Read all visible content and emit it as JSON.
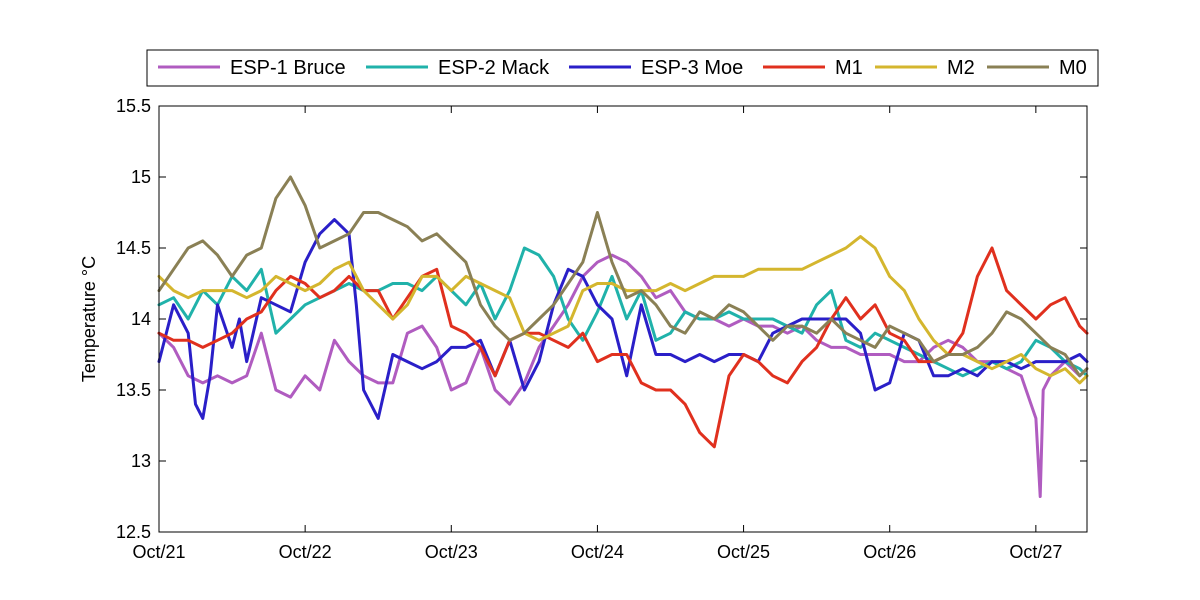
{
  "chart_data": {
    "type": "line",
    "title": "",
    "xlabel": "",
    "ylabel": "Temperature °C",
    "xlim": [
      0,
      6.35
    ],
    "ylim": [
      12.5,
      15.5
    ],
    "x_ticks": [
      0,
      1,
      2,
      3,
      4,
      5,
      6
    ],
    "x_tick_labels": [
      "Oct/21",
      "Oct/22",
      "Oct/23",
      "Oct/24",
      "Oct/25",
      "Oct/26",
      "Oct/27"
    ],
    "y_ticks": [
      12.5,
      13,
      13.5,
      14,
      14.5,
      15,
      15.5
    ],
    "y_tick_labels": [
      "12.5",
      "13",
      "13.5",
      "14",
      "14.5",
      "15",
      "15.5"
    ],
    "legend_position": "top",
    "series": [
      {
        "name": "ESP-1 Bruce",
        "color": "#B05CC0",
        "x": [
          0,
          0.1,
          0.2,
          0.3,
          0.4,
          0.5,
          0.6,
          0.7,
          0.8,
          0.9,
          1.0,
          1.1,
          1.2,
          1.3,
          1.4,
          1.5,
          1.6,
          1.7,
          1.8,
          1.9,
          2.0,
          2.1,
          2.2,
          2.3,
          2.4,
          2.5,
          2.6,
          2.7,
          2.8,
          2.9,
          3.0,
          3.1,
          3.2,
          3.3,
          3.4,
          3.5,
          3.6,
          3.7,
          3.8,
          3.9,
          4.0,
          4.1,
          4.2,
          4.3,
          4.4,
          4.5,
          4.6,
          4.7,
          4.8,
          4.9,
          5.0,
          5.1,
          5.2,
          5.3,
          5.4,
          5.5,
          5.6,
          5.7,
          5.8,
          5.9,
          6.0,
          6.03,
          6.05,
          6.1,
          6.2,
          6.3,
          6.35
        ],
        "y": [
          13.9,
          13.8,
          13.6,
          13.55,
          13.6,
          13.55,
          13.6,
          13.9,
          13.5,
          13.45,
          13.6,
          13.5,
          13.85,
          13.7,
          13.6,
          13.55,
          13.55,
          13.9,
          13.95,
          13.8,
          13.5,
          13.55,
          13.8,
          13.5,
          13.4,
          13.55,
          13.8,
          13.95,
          14.1,
          14.3,
          14.4,
          14.45,
          14.4,
          14.3,
          14.15,
          14.2,
          14.05,
          14.0,
          14.0,
          13.95,
          14.0,
          13.95,
          13.95,
          13.9,
          13.95,
          13.85,
          13.8,
          13.8,
          13.75,
          13.75,
          13.75,
          13.7,
          13.7,
          13.8,
          13.85,
          13.8,
          13.7,
          13.7,
          13.65,
          13.6,
          13.3,
          12.75,
          13.5,
          13.6,
          13.7,
          13.6,
          13.65
        ]
      },
      {
        "name": "ESP-2 Mack",
        "color": "#20B2AA",
        "x": [
          0,
          0.1,
          0.2,
          0.3,
          0.4,
          0.5,
          0.6,
          0.7,
          0.8,
          0.9,
          1.0,
          1.1,
          1.2,
          1.3,
          1.4,
          1.5,
          1.6,
          1.7,
          1.8,
          1.9,
          2.0,
          2.1,
          2.2,
          2.3,
          2.4,
          2.5,
          2.6,
          2.7,
          2.8,
          2.9,
          3.0,
          3.1,
          3.2,
          3.3,
          3.4,
          3.5,
          3.6,
          3.7,
          3.8,
          3.9,
          4.0,
          4.1,
          4.2,
          4.3,
          4.4,
          4.5,
          4.6,
          4.7,
          4.8,
          4.9,
          5.0,
          5.1,
          5.2,
          5.3,
          5.4,
          5.5,
          5.6,
          5.7,
          5.8,
          5.9,
          6.0,
          6.1,
          6.2,
          6.3,
          6.35
        ],
        "y": [
          14.1,
          14.15,
          14.0,
          14.2,
          14.1,
          14.3,
          14.2,
          14.35,
          13.9,
          14.0,
          14.1,
          14.15,
          14.2,
          14.25,
          14.2,
          14.2,
          14.25,
          14.25,
          14.2,
          14.3,
          14.2,
          14.1,
          14.25,
          14.0,
          14.2,
          14.5,
          14.45,
          14.3,
          14.0,
          13.85,
          14.05,
          14.3,
          14.0,
          14.2,
          13.85,
          13.9,
          14.05,
          14.0,
          14.0,
          14.05,
          14.0,
          14.0,
          14.0,
          13.95,
          13.9,
          14.1,
          14.2,
          13.85,
          13.8,
          13.9,
          13.85,
          13.8,
          13.75,
          13.7,
          13.65,
          13.6,
          13.65,
          13.7,
          13.65,
          13.7,
          13.85,
          13.8,
          13.7,
          13.65,
          13.6
        ]
      },
      {
        "name": "ESP-3 Moe",
        "color": "#2A1FC8",
        "x": [
          0,
          0.1,
          0.2,
          0.25,
          0.3,
          0.35,
          0.4,
          0.5,
          0.55,
          0.6,
          0.7,
          0.8,
          0.9,
          1.0,
          1.1,
          1.2,
          1.3,
          1.35,
          1.4,
          1.5,
          1.6,
          1.7,
          1.8,
          1.9,
          2.0,
          2.1,
          2.2,
          2.3,
          2.4,
          2.5,
          2.6,
          2.7,
          2.8,
          2.9,
          3.0,
          3.1,
          3.2,
          3.3,
          3.4,
          3.5,
          3.6,
          3.7,
          3.8,
          3.9,
          4.0,
          4.1,
          4.2,
          4.3,
          4.4,
          4.5,
          4.6,
          4.7,
          4.8,
          4.9,
          5.0,
          5.1,
          5.2,
          5.3,
          5.4,
          5.5,
          5.6,
          5.7,
          5.8,
          5.9,
          6.0,
          6.1,
          6.2,
          6.3,
          6.35
        ],
        "y": [
          13.7,
          14.1,
          13.9,
          13.4,
          13.3,
          13.6,
          14.1,
          13.8,
          14.0,
          13.7,
          14.15,
          14.1,
          14.05,
          14.4,
          14.6,
          14.7,
          14.6,
          14.1,
          13.5,
          13.3,
          13.75,
          13.7,
          13.65,
          13.7,
          13.8,
          13.8,
          13.85,
          13.6,
          13.85,
          13.5,
          13.7,
          14.1,
          14.35,
          14.3,
          14.1,
          14.0,
          13.6,
          14.1,
          13.75,
          13.75,
          13.7,
          13.75,
          13.7,
          13.75,
          13.75,
          13.7,
          13.9,
          13.95,
          14.0,
          14.0,
          14.0,
          14.0,
          13.9,
          13.5,
          13.55,
          13.9,
          13.85,
          13.6,
          13.6,
          13.65,
          13.6,
          13.7,
          13.7,
          13.65,
          13.7,
          13.7,
          13.7,
          13.75,
          13.7
        ]
      },
      {
        "name": "M1",
        "color": "#E0301E",
        "x": [
          0,
          0.1,
          0.2,
          0.3,
          0.4,
          0.5,
          0.6,
          0.7,
          0.8,
          0.9,
          1.0,
          1.1,
          1.2,
          1.3,
          1.4,
          1.5,
          1.6,
          1.7,
          1.8,
          1.9,
          2.0,
          2.1,
          2.2,
          2.3,
          2.4,
          2.5,
          2.6,
          2.7,
          2.8,
          2.9,
          3.0,
          3.1,
          3.2,
          3.3,
          3.4,
          3.5,
          3.6,
          3.7,
          3.8,
          3.9,
          4.0,
          4.1,
          4.2,
          4.3,
          4.4,
          4.5,
          4.6,
          4.7,
          4.8,
          4.9,
          5.0,
          5.1,
          5.2,
          5.3,
          5.4,
          5.5,
          5.6,
          5.7,
          5.8,
          5.9,
          6.0,
          6.05,
          6.1,
          6.2,
          6.3,
          6.35
        ],
        "y": [
          13.9,
          13.85,
          13.85,
          13.8,
          13.85,
          13.9,
          14.0,
          14.05,
          14.2,
          14.3,
          14.25,
          14.15,
          14.2,
          14.3,
          14.2,
          14.2,
          14.0,
          14.15,
          14.3,
          14.35,
          13.95,
          13.9,
          13.8,
          13.6,
          13.85,
          13.9,
          13.9,
          13.85,
          13.8,
          13.9,
          13.7,
          13.75,
          13.75,
          13.55,
          13.5,
          13.5,
          13.4,
          13.2,
          13.1,
          13.6,
          13.75,
          13.7,
          13.6,
          13.55,
          13.7,
          13.8,
          14.0,
          14.15,
          14.0,
          14.1,
          13.9,
          13.85,
          13.7,
          13.7,
          13.75,
          13.9,
          14.3,
          14.5,
          14.2,
          14.1,
          14.0,
          14.05,
          14.1,
          14.15,
          13.95,
          13.9
        ]
      },
      {
        "name": "M2",
        "color": "#D4B62E",
        "x": [
          0,
          0.1,
          0.2,
          0.3,
          0.4,
          0.5,
          0.6,
          0.7,
          0.8,
          0.9,
          1.0,
          1.1,
          1.2,
          1.3,
          1.4,
          1.5,
          1.6,
          1.7,
          1.8,
          1.9,
          2.0,
          2.1,
          2.2,
          2.3,
          2.4,
          2.5,
          2.6,
          2.7,
          2.8,
          2.9,
          3.0,
          3.1,
          3.2,
          3.3,
          3.4,
          3.5,
          3.6,
          3.7,
          3.8,
          3.9,
          4.0,
          4.1,
          4.2,
          4.3,
          4.4,
          4.5,
          4.6,
          4.7,
          4.8,
          4.9,
          5.0,
          5.1,
          5.2,
          5.3,
          5.4,
          5.5,
          5.6,
          5.7,
          5.8,
          5.9,
          6.0,
          6.1,
          6.2,
          6.3,
          6.35
        ],
        "y": [
          14.3,
          14.2,
          14.15,
          14.2,
          14.2,
          14.2,
          14.15,
          14.2,
          14.3,
          14.25,
          14.2,
          14.25,
          14.35,
          14.4,
          14.2,
          14.1,
          14.0,
          14.1,
          14.3,
          14.3,
          14.2,
          14.3,
          14.25,
          14.2,
          14.15,
          13.9,
          13.85,
          13.9,
          13.95,
          14.2,
          14.25,
          14.25,
          14.2,
          14.2,
          14.2,
          14.25,
          14.2,
          14.25,
          14.3,
          14.3,
          14.3,
          14.35,
          14.35,
          14.35,
          14.35,
          14.4,
          14.45,
          14.5,
          14.58,
          14.5,
          14.3,
          14.2,
          14.0,
          13.85,
          13.75,
          13.75,
          13.7,
          13.65,
          13.7,
          13.75,
          13.65,
          13.6,
          13.65,
          13.55,
          13.6
        ]
      },
      {
        "name": "M0",
        "color": "#8A8055",
        "x": [
          0,
          0.1,
          0.2,
          0.3,
          0.4,
          0.5,
          0.6,
          0.7,
          0.8,
          0.9,
          1.0,
          1.1,
          1.2,
          1.3,
          1.4,
          1.5,
          1.6,
          1.7,
          1.8,
          1.9,
          2.0,
          2.1,
          2.2,
          2.3,
          2.4,
          2.5,
          2.6,
          2.7,
          2.8,
          2.9,
          3.0,
          3.1,
          3.2,
          3.3,
          3.4,
          3.5,
          3.6,
          3.7,
          3.8,
          3.9,
          4.0,
          4.1,
          4.2,
          4.3,
          4.4,
          4.5,
          4.6,
          4.7,
          4.8,
          4.9,
          5.0,
          5.1,
          5.2,
          5.3,
          5.4,
          5.5,
          5.6,
          5.7,
          5.8,
          5.9,
          6.0,
          6.1,
          6.2,
          6.3,
          6.35
        ],
        "y": [
          14.2,
          14.35,
          14.5,
          14.55,
          14.45,
          14.3,
          14.45,
          14.5,
          14.85,
          15.0,
          14.8,
          14.5,
          14.55,
          14.6,
          14.75,
          14.75,
          14.7,
          14.65,
          14.55,
          14.6,
          14.5,
          14.4,
          14.1,
          13.95,
          13.85,
          13.9,
          14.0,
          14.1,
          14.25,
          14.4,
          14.75,
          14.4,
          14.15,
          14.2,
          14.1,
          13.95,
          13.9,
          14.05,
          14.0,
          14.1,
          14.05,
          13.95,
          13.85,
          13.95,
          13.95,
          13.9,
          14.0,
          13.9,
          13.85,
          13.8,
          13.95,
          13.9,
          13.85,
          13.7,
          13.75,
          13.75,
          13.8,
          13.9,
          14.05,
          14.0,
          13.9,
          13.8,
          13.75,
          13.6,
          13.65
        ]
      }
    ]
  },
  "page": {
    "background": "#ffffff",
    "axes_color": "#000000"
  }
}
